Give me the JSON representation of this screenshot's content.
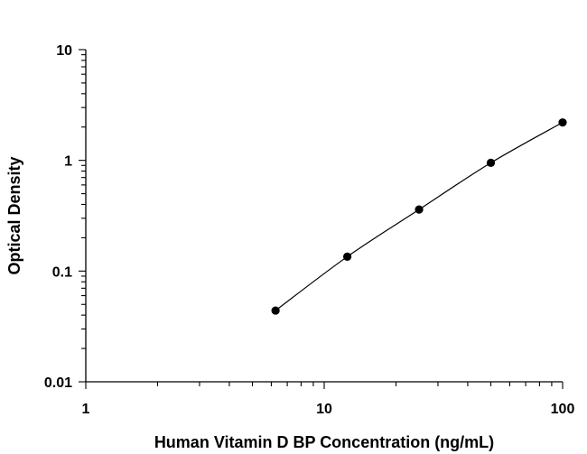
{
  "chart_data": {
    "type": "scatter",
    "title": "",
    "xlabel": "Human Vitamin D BP Concentration (ng/mL)",
    "ylabel": "Optical Density",
    "xscale": "log",
    "yscale": "log",
    "xlim": [
      1,
      100
    ],
    "ylim": [
      0.01,
      10
    ],
    "xticks": [
      1,
      10,
      100
    ],
    "xtick_labels": [
      "1",
      "10",
      "100"
    ],
    "yticks": [
      0.01,
      0.1,
      1,
      10
    ],
    "ytick_labels": [
      "0.01",
      "0.1",
      "1",
      "10"
    ],
    "grid": false,
    "legend": "none",
    "series": [
      {
        "x": [
          6.25,
          12.5,
          25,
          50,
          100
        ],
        "y": [
          0.044,
          0.135,
          0.36,
          0.95,
          2.2
        ],
        "marker": "filled-circle",
        "color": "#000000",
        "fit_curve": true
      }
    ]
  }
}
